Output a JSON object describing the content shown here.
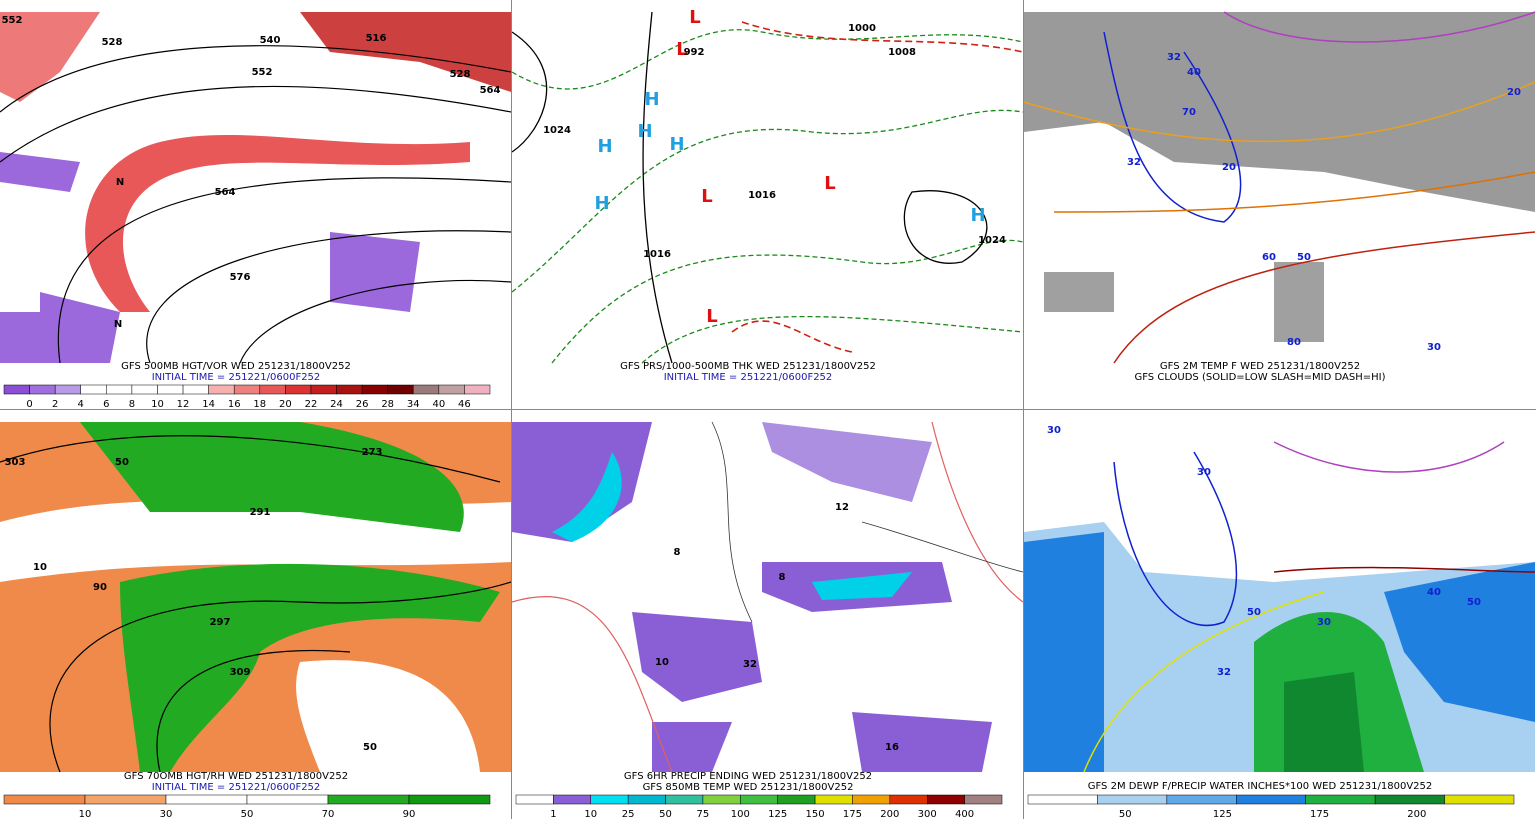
{
  "panels": [
    {
      "captions": [
        "GFS 500MB HGT/VOR WED 251231/1800V252",
        "INITIAL TIME = 251221/0600F252"
      ],
      "legend": {
        "labels": [
          "0",
          "2",
          "4",
          "6",
          "8",
          "10",
          "12",
          "14",
          "16",
          "18",
          "20",
          "22",
          "24",
          "26",
          "28",
          "34",
          "40",
          "46"
        ],
        "colors": [
          "#8a4fd6",
          "#9f6fe0",
          "#b89ae8",
          "#ffffff",
          "#ffffff",
          "#ffffff",
          "#ffffff",
          "#ffffff",
          "#f6b0b0",
          "#ee8080",
          "#e85858",
          "#dd3333",
          "#c41e1e",
          "#aa1111",
          "#880000",
          "#700000",
          "#9a7a7a",
          "#c0a0a0",
          "#f0b0c0"
        ]
      },
      "map_labels": [
        "552",
        "528",
        "540",
        "552",
        "564",
        "516",
        "528",
        "564",
        "576",
        "N",
        "N"
      ]
    },
    {
      "captions": [
        "GFS PRS/1000-500MB THK WED 251231/1800V252",
        "INITIAL TIME = 251221/0600F252"
      ],
      "map_labels": [
        "H",
        "H",
        "H",
        "H",
        "H",
        "H",
        "L",
        "L",
        "L",
        "L",
        "L",
        "1000",
        "1008",
        "1024",
        "1016",
        "1016",
        "1024",
        "992"
      ]
    },
    {
      "captions": [
        "GFS 2M TEMP F WED 251231/1800V252",
        "GFS CLOUDS (SOLID=LOW SLASH=MID DASH=HI)"
      ],
      "map_labels": [
        "32",
        "32",
        "20",
        "40",
        "50",
        "60",
        "70",
        "80",
        "20",
        "30"
      ]
    },
    {
      "captions": [
        "GFS 70OMB HGT/RH WED 251231/1800V252",
        "INITIAL TIME = 251221/0600F252"
      ],
      "legend": {
        "labels": [
          "10",
          "30",
          "50",
          "70",
          "90"
        ],
        "colors": [
          "#f08a4a",
          "#f4a36a",
          "#ffffff",
          "#ffffff",
          "#22aa22",
          "#119911"
        ]
      },
      "map_labels": [
        "303",
        "291",
        "297",
        "273",
        "50",
        "90",
        "10",
        "309",
        "50"
      ]
    },
    {
      "captions": [
        "GFS 6HR PRECIP ENDING WED 251231/1800V252",
        "GFS 850MB TEMP WED 251231/1800V252"
      ],
      "legend": {
        "labels": [
          "1",
          "10",
          "25",
          "50",
          "75",
          "100",
          "125",
          "150",
          "175",
          "200",
          "300",
          "400"
        ],
        "colors": [
          "#ffffff",
          "#8a5fd6",
          "#00e0f0",
          "#00b8d0",
          "#30c0a0",
          "#80d040",
          "#40c040",
          "#20a020",
          "#e0e000",
          "#f0a000",
          "#e03000",
          "#900000",
          "#a08080"
        ]
      },
      "map_labels": [
        "10",
        "32",
        "16",
        "8",
        "12",
        "8"
      ]
    },
    {
      "captions": [
        "GFS 2M DEWP F/PRECIP WATER INCHES*100 WED 251231/1800V252"
      ],
      "legend": {
        "labels": [
          "50",
          "125",
          "175",
          "200"
        ],
        "colors": [
          "#ffffff",
          "#a8d0f0",
          "#60a8e8",
          "#2080e0",
          "#20b040",
          "#108830",
          "#e0e000"
        ]
      },
      "map_labels": [
        "30",
        "30",
        "50",
        "40",
        "50",
        "32",
        "30"
      ]
    }
  ]
}
